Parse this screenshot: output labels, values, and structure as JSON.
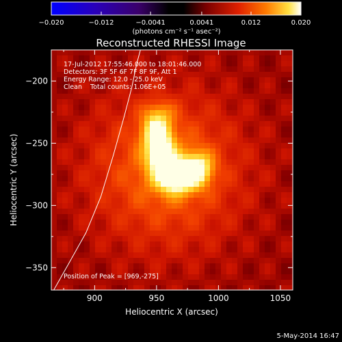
{
  "chart_data": {
    "type": "heatmap",
    "title": "Reconstructed RHESSI Image",
    "xlabel": "Heliocentric X (arcsec)",
    "ylabel": "Heliocentric Y (arcsec)",
    "xlim": [
      865,
      1060
    ],
    "ylim": [
      -368,
      -175
    ],
    "x_ticks": [
      900,
      950,
      1000,
      1050
    ],
    "y_ticks": [
      -200,
      -250,
      -300,
      -350
    ],
    "colorbar": {
      "min": -0.02,
      "max": 0.02,
      "tick_values": [
        -0.02,
        -0.012,
        -0.0041,
        0.0041,
        0.012,
        0.02
      ],
      "tick_labels": [
        "−0.020",
        "−0.012",
        "−0.0041",
        "0.0041",
        "0.012",
        "0.020"
      ],
      "unit_label": "(photons cm⁻² s⁻¹ asec⁻²)"
    },
    "annotations": [
      "17-Jul-2012 17:55:46.000 to 18:01:46.000",
      "Detectors: 3F 5F 6F 7F 8F 9F, Att 1",
      "Energy Range: 12.0 - 25.0 keV",
      "Clean    Total counts: 1.06E+05"
    ],
    "peak_label": "Position of Peak = [969,-275]",
    "peak": [
      969,
      -275
    ],
    "sources": [
      {
        "x": 966,
        "y": -276,
        "amplitude": 0.02,
        "sigma_x": 11,
        "sigma_y": 9
      },
      {
        "x": 984,
        "y": -270,
        "amplitude": 0.011,
        "sigma_x": 8,
        "sigma_y": 9
      },
      {
        "x": 953,
        "y": -258,
        "amplitude": 0.014,
        "sigma_x": 8,
        "sigma_y": 10
      },
      {
        "x": 950,
        "y": -240,
        "amplitude": 0.0125,
        "sigma_x": 8,
        "sigma_y": 9
      },
      {
        "x": 952,
        "y": -225,
        "amplitude": 0.0045,
        "sigma_x": 9,
        "sigma_y": 7
      },
      {
        "x": 958,
        "y": -272,
        "amplitude": 0.007,
        "sigma_x": 40,
        "sigma_y": 40
      }
    ],
    "background_level": 0.0035,
    "limb": [
      [
        867,
        -368
      ],
      [
        880,
        -345
      ],
      [
        893,
        -322
      ],
      [
        905,
        -293
      ],
      [
        915,
        -260
      ],
      [
        924,
        -228
      ],
      [
        930,
        -205
      ],
      [
        934,
        -186
      ],
      [
        937,
        -175
      ]
    ],
    "grid": false
  },
  "footer_date": "5-May-2014 16:47"
}
